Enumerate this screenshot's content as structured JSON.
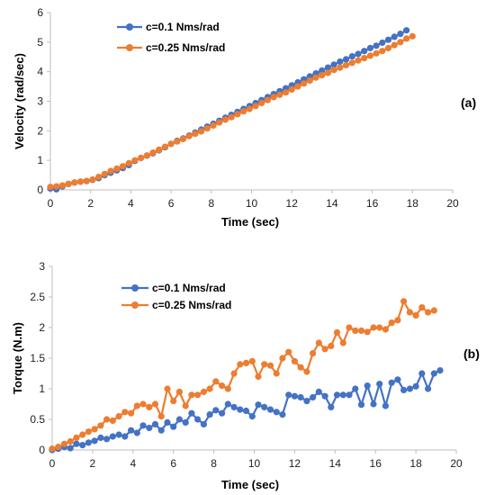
{
  "chart_data": [
    {
      "type": "line",
      "panel_label": "(a)",
      "xlabel": "Time (sec)",
      "ylabel": "Velocity (rad/sec)",
      "xlim": [
        0,
        20
      ],
      "ylim": [
        0,
        6
      ],
      "xticks": [
        0,
        2,
        4,
        6,
        8,
        10,
        12,
        14,
        16,
        18,
        20
      ],
      "yticks": [
        0,
        1,
        2,
        3,
        4,
        5,
        6
      ],
      "grid": false,
      "legend_position": "top-left",
      "series": [
        {
          "name": "c=0.1 Nms/rad",
          "color": "#4472C4",
          "x": [
            0,
            0.3,
            0.6,
            0.9,
            1.2,
            1.5,
            1.8,
            2.1,
            2.4,
            2.7,
            3.0,
            3.3,
            3.6,
            3.9,
            4.2,
            4.5,
            4.8,
            5.1,
            5.4,
            5.7,
            6.0,
            6.3,
            6.6,
            6.9,
            7.2,
            7.5,
            7.8,
            8.1,
            8.4,
            8.7,
            9.0,
            9.3,
            9.6,
            9.9,
            10.2,
            10.5,
            10.8,
            11.1,
            11.4,
            11.7,
            12.0,
            12.3,
            12.6,
            12.9,
            13.2,
            13.5,
            13.8,
            14.1,
            14.4,
            14.7,
            15.0,
            15.3,
            15.6,
            15.9,
            16.2,
            16.5,
            16.8,
            17.1,
            17.4,
            17.7
          ],
          "values": [
            0.05,
            0.02,
            0.12,
            0.2,
            0.25,
            0.28,
            0.3,
            0.34,
            0.4,
            0.5,
            0.58,
            0.66,
            0.74,
            0.84,
            0.98,
            1.08,
            1.16,
            1.24,
            1.34,
            1.44,
            1.56,
            1.66,
            1.74,
            1.84,
            1.94,
            2.04,
            2.14,
            2.24,
            2.34,
            2.44,
            2.54,
            2.64,
            2.74,
            2.84,
            2.94,
            3.04,
            3.14,
            3.24,
            3.34,
            3.44,
            3.54,
            3.64,
            3.74,
            3.84,
            3.94,
            4.04,
            4.14,
            4.24,
            4.34,
            4.42,
            4.52,
            4.6,
            4.7,
            4.8,
            4.88,
            4.98,
            5.08,
            5.18,
            5.28,
            5.4
          ]
        },
        {
          "name": "c=0.25 Nms/rad",
          "color": "#ED7D31",
          "x": [
            0,
            0.3,
            0.6,
            0.9,
            1.2,
            1.5,
            1.8,
            2.1,
            2.4,
            2.7,
            3.0,
            3.3,
            3.6,
            3.9,
            4.2,
            4.5,
            4.8,
            5.1,
            5.4,
            5.7,
            6.0,
            6.3,
            6.6,
            6.9,
            7.2,
            7.5,
            7.8,
            8.1,
            8.4,
            8.7,
            9.0,
            9.3,
            9.6,
            9.9,
            10.2,
            10.5,
            10.8,
            11.1,
            11.4,
            11.7,
            12.0,
            12.3,
            12.6,
            12.9,
            13.2,
            13.5,
            13.8,
            14.1,
            14.4,
            14.7,
            15.0,
            15.3,
            15.6,
            15.9,
            16.2,
            16.5,
            16.8,
            17.1,
            17.4,
            17.7,
            18.0
          ],
          "values": [
            0.1,
            0.12,
            0.15,
            0.2,
            0.25,
            0.28,
            0.3,
            0.35,
            0.44,
            0.54,
            0.64,
            0.72,
            0.8,
            0.9,
            1.0,
            1.08,
            1.16,
            1.26,
            1.36,
            1.46,
            1.56,
            1.64,
            1.72,
            1.82,
            1.9,
            1.98,
            2.08,
            2.18,
            2.28,
            2.38,
            2.46,
            2.56,
            2.66,
            2.74,
            2.84,
            2.94,
            3.04,
            3.14,
            3.22,
            3.3,
            3.4,
            3.5,
            3.6,
            3.7,
            3.8,
            3.88,
            3.96,
            4.06,
            4.14,
            4.22,
            4.3,
            4.38,
            4.46,
            4.54,
            4.62,
            4.7,
            4.8,
            4.9,
            5.0,
            5.12,
            5.2
          ]
        }
      ]
    },
    {
      "type": "line",
      "panel_label": "(b)",
      "xlabel": "Time (sec)",
      "ylabel": "Torque (N.m)",
      "xlim": [
        0,
        20
      ],
      "ylim": [
        0,
        3
      ],
      "xticks": [
        0,
        2,
        4,
        6,
        8,
        10,
        12,
        14,
        16,
        18,
        20
      ],
      "yticks": [
        0,
        0.5,
        1,
        1.5,
        2,
        2.5,
        3
      ],
      "grid": false,
      "legend_position": "top-center",
      "series": [
        {
          "name": "c=0.1 Nms/rad",
          "color": "#4472C4",
          "x": [
            0,
            0.3,
            0.6,
            0.9,
            1.2,
            1.5,
            1.8,
            2.1,
            2.4,
            2.7,
            3.0,
            3.3,
            3.6,
            3.9,
            4.2,
            4.5,
            4.8,
            5.1,
            5.4,
            5.7,
            6.0,
            6.3,
            6.6,
            6.9,
            7.2,
            7.5,
            7.8,
            8.1,
            8.4,
            8.7,
            9.0,
            9.3,
            9.6,
            9.9,
            10.2,
            10.5,
            10.8,
            11.1,
            11.4,
            11.7,
            12.0,
            12.3,
            12.6,
            12.9,
            13.2,
            13.5,
            13.8,
            14.1,
            14.4,
            14.7,
            15.0,
            15.3,
            15.6,
            15.9,
            16.2,
            16.5,
            16.8,
            17.1,
            17.4,
            17.7,
            18.0,
            18.3,
            18.6,
            18.9,
            19.2
          ],
          "values": [
            0.0,
            0.02,
            0.05,
            0.03,
            0.1,
            0.08,
            0.12,
            0.15,
            0.2,
            0.18,
            0.22,
            0.25,
            0.22,
            0.32,
            0.28,
            0.4,
            0.36,
            0.42,
            0.32,
            0.45,
            0.38,
            0.5,
            0.45,
            0.6,
            0.5,
            0.42,
            0.58,
            0.65,
            0.6,
            0.75,
            0.7,
            0.66,
            0.64,
            0.55,
            0.74,
            0.7,
            0.66,
            0.62,
            0.58,
            0.9,
            0.88,
            0.86,
            0.8,
            0.86,
            0.95,
            0.88,
            0.7,
            0.9,
            0.9,
            0.9,
            1.0,
            0.74,
            1.05,
            0.75,
            1.08,
            0.72,
            1.1,
            1.15,
            0.98,
            1.0,
            1.04,
            1.25,
            1.0,
            1.25,
            1.3
          ]
        },
        {
          "name": "c=0.25 Nms/rad",
          "color": "#ED7D31",
          "x": [
            0,
            0.3,
            0.6,
            0.9,
            1.2,
            1.5,
            1.8,
            2.1,
            2.4,
            2.7,
            3.0,
            3.3,
            3.6,
            3.9,
            4.2,
            4.5,
            4.8,
            5.1,
            5.4,
            5.7,
            6.0,
            6.3,
            6.6,
            6.9,
            7.2,
            7.5,
            7.8,
            8.1,
            8.4,
            8.7,
            9.0,
            9.3,
            9.6,
            9.9,
            10.2,
            10.5,
            10.8,
            11.1,
            11.4,
            11.7,
            12.0,
            12.3,
            12.6,
            12.9,
            13.2,
            13.5,
            13.8,
            14.1,
            14.4,
            14.7,
            15.0,
            15.3,
            15.6,
            15.9,
            16.2,
            16.5,
            16.8,
            17.1,
            17.4,
            17.7,
            18.0,
            18.3,
            18.6,
            18.9
          ],
          "values": [
            0.02,
            0.05,
            0.1,
            0.14,
            0.2,
            0.25,
            0.3,
            0.34,
            0.4,
            0.5,
            0.48,
            0.55,
            0.62,
            0.6,
            0.72,
            0.75,
            0.7,
            0.75,
            0.55,
            1.0,
            0.8,
            0.95,
            0.72,
            0.9,
            0.9,
            0.95,
            1.0,
            1.12,
            1.05,
            1.0,
            1.25,
            1.4,
            1.42,
            1.45,
            1.2,
            1.4,
            1.38,
            1.25,
            1.5,
            1.6,
            1.45,
            1.35,
            1.28,
            1.58,
            1.75,
            1.65,
            1.7,
            1.92,
            1.75,
            2.0,
            1.95,
            1.95,
            1.93,
            2.0,
            2.0,
            1.97,
            2.08,
            2.12,
            2.43,
            2.25,
            2.2,
            2.33,
            2.25,
            2.28
          ]
        }
      ]
    }
  ]
}
